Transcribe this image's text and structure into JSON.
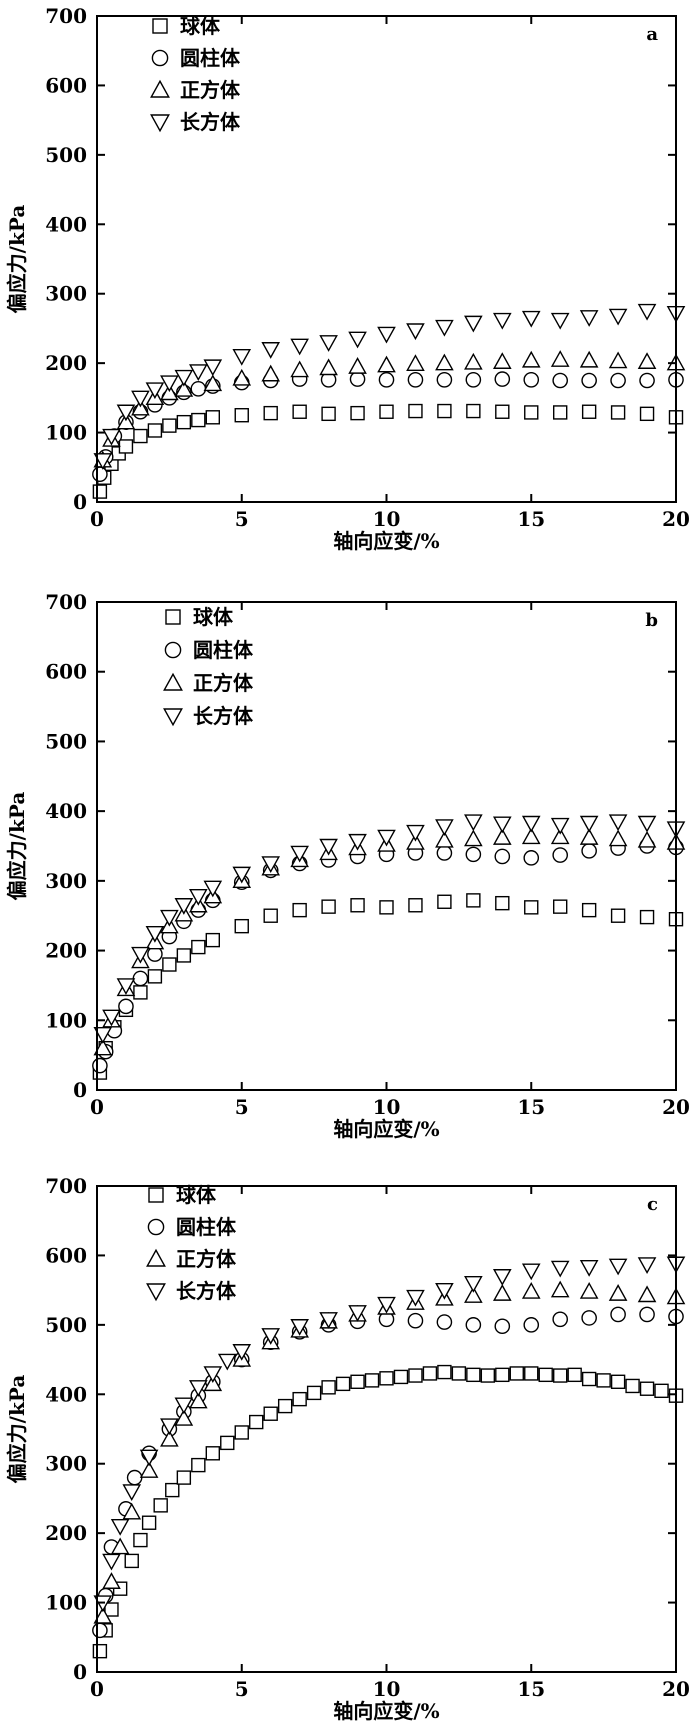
{
  "chart_data": [
    {
      "type": "scatter",
      "panel_label": "a",
      "xlabel": "轴向应变/%",
      "ylabel": "偏应力/kPa",
      "xlim": [
        0,
        20
      ],
      "ylim": [
        0,
        700
      ],
      "xticks": [
        0,
        5,
        10,
        15,
        20
      ],
      "yticks": [
        0,
        100,
        200,
        300,
        400,
        500,
        600,
        700
      ],
      "grid": false,
      "legend_position": "top-left",
      "series": [
        {
          "name": "球体",
          "marker": "square",
          "x": [
            0.1,
            0.25,
            0.5,
            0.75,
            1,
            1.5,
            2,
            2.5,
            3,
            3.5,
            4,
            5,
            6,
            7,
            8,
            9,
            10,
            11,
            12,
            13,
            14,
            15,
            16,
            17,
            18,
            19,
            20
          ],
          "y": [
            15,
            35,
            55,
            70,
            80,
            95,
            103,
            110,
            115,
            118,
            122,
            125,
            128,
            130,
            127,
            128,
            130,
            131,
            131,
            131,
            130,
            129,
            129,
            130,
            129,
            127,
            122
          ]
        },
        {
          "name": "圆柱体",
          "marker": "circle",
          "x": [
            0.1,
            0.3,
            0.6,
            1,
            1.5,
            2,
            2.5,
            3,
            3.5,
            4,
            5,
            6,
            7,
            8,
            9,
            10,
            11,
            12,
            13,
            14,
            15,
            16,
            17,
            18,
            19,
            20
          ],
          "y": [
            40,
            65,
            95,
            115,
            130,
            140,
            150,
            158,
            163,
            167,
            172,
            175,
            177,
            176,
            177,
            176,
            176,
            176,
            176,
            177,
            176,
            175,
            175,
            175,
            175,
            176
          ]
        },
        {
          "name": "正方体",
          "marker": "triangle-up",
          "x": [
            0.2,
            0.5,
            1,
            1.5,
            2,
            2.5,
            3,
            4,
            5,
            6,
            7,
            8,
            9,
            10,
            11,
            12,
            13,
            14,
            15,
            16,
            17,
            18,
            19,
            20
          ],
          "y": [
            60,
            90,
            115,
            135,
            150,
            157,
            162,
            170,
            178,
            184,
            190,
            193,
            195,
            197,
            199,
            200,
            201,
            202,
            204,
            205,
            204,
            203,
            202,
            200
          ]
        },
        {
          "name": "长方体",
          "marker": "triangle-down",
          "x": [
            0.2,
            0.5,
            1,
            1.5,
            2,
            2.5,
            3,
            3.5,
            4,
            5,
            6,
            7,
            8,
            9,
            10,
            11,
            12,
            13,
            14,
            15,
            16,
            17,
            18,
            19,
            20
          ],
          "y": [
            60,
            95,
            130,
            150,
            162,
            172,
            180,
            188,
            195,
            210,
            220,
            225,
            230,
            235,
            242,
            247,
            252,
            258,
            262,
            265,
            262,
            266,
            268,
            275,
            272
          ]
        }
      ]
    },
    {
      "type": "scatter",
      "panel_label": "b",
      "xlabel": "轴向应变/%",
      "ylabel": "偏应力/kPa",
      "xlim": [
        0,
        20
      ],
      "ylim": [
        0,
        700
      ],
      "xticks": [
        0,
        5,
        10,
        15,
        20
      ],
      "yticks": [
        0,
        100,
        200,
        300,
        400,
        500,
        600,
        700
      ],
      "grid": false,
      "legend_position": "top-left",
      "series": [
        {
          "name": "球体",
          "marker": "square",
          "x": [
            0.1,
            0.3,
            0.6,
            1,
            1.5,
            2,
            2.5,
            3,
            3.5,
            4,
            5,
            6,
            7,
            8,
            9,
            10,
            11,
            12,
            13,
            14,
            15,
            16,
            17,
            18,
            19,
            20
          ],
          "y": [
            25,
            60,
            90,
            115,
            140,
            163,
            180,
            193,
            205,
            215,
            235,
            250,
            258,
            263,
            265,
            262,
            265,
            270,
            272,
            268,
            262,
            263,
            258,
            250,
            248,
            245
          ]
        },
        {
          "name": "圆柱体",
          "marker": "circle",
          "x": [
            0.1,
            0.3,
            0.6,
            1,
            1.5,
            2,
            2.5,
            3,
            3.5,
            4,
            5,
            6,
            7,
            8,
            9,
            10,
            11,
            12,
            13,
            14,
            15,
            16,
            17,
            18,
            19,
            20
          ],
          "y": [
            35,
            55,
            85,
            120,
            160,
            195,
            220,
            242,
            258,
            272,
            298,
            315,
            325,
            330,
            335,
            338,
            340,
            340,
            338,
            335,
            333,
            337,
            343,
            347,
            350,
            348
          ]
        },
        {
          "name": "正方体",
          "marker": "triangle-up",
          "x": [
            0.2,
            0.5,
            1,
            1.5,
            2,
            2.5,
            3,
            3.5,
            4,
            5,
            6,
            7,
            8,
            9,
            10,
            11,
            12,
            13,
            14,
            15,
            16,
            17,
            18,
            19,
            20
          ],
          "y": [
            60,
            100,
            145,
            185,
            212,
            235,
            252,
            265,
            278,
            300,
            318,
            330,
            340,
            347,
            352,
            355,
            358,
            360,
            362,
            363,
            363,
            362,
            360,
            358,
            355
          ]
        },
        {
          "name": "长方体",
          "marker": "triangle-down",
          "x": [
            0.2,
            0.5,
            1,
            1.5,
            2,
            2.5,
            3,
            3.5,
            4,
            5,
            6,
            7,
            8,
            9,
            10,
            11,
            12,
            13,
            14,
            15,
            16,
            17,
            18,
            19,
            20
          ],
          "y": [
            80,
            105,
            150,
            195,
            225,
            248,
            265,
            278,
            290,
            310,
            325,
            340,
            350,
            357,
            363,
            370,
            378,
            385,
            382,
            383,
            380,
            383,
            385,
            383,
            375
          ]
        }
      ]
    },
    {
      "type": "scatter",
      "panel_label": "c",
      "xlabel": "轴向应变/%",
      "ylabel": "偏应力/kPa",
      "xlim": [
        0,
        20
      ],
      "ylim": [
        0,
        700
      ],
      "xticks": [
        0,
        5,
        10,
        15,
        20
      ],
      "yticks": [
        0,
        100,
        200,
        300,
        400,
        500,
        600,
        700
      ],
      "grid": false,
      "legend_position": "top-left",
      "series": [
        {
          "name": "球体",
          "marker": "square",
          "x": [
            0.1,
            0.3,
            0.5,
            0.8,
            1.2,
            1.5,
            1.8,
            2.2,
            2.6,
            3,
            3.5,
            4,
            4.5,
            5,
            5.5,
            6,
            6.5,
            7,
            7.5,
            8,
            8.5,
            9,
            9.5,
            10,
            10.5,
            11,
            11.5,
            12,
            12.5,
            13,
            13.5,
            14,
            14.5,
            15,
            15.5,
            16,
            16.5,
            17,
            17.5,
            18,
            18.5,
            19,
            19.5,
            20
          ],
          "y": [
            30,
            60,
            90,
            120,
            160,
            190,
            215,
            240,
            262,
            280,
            298,
            315,
            330,
            345,
            360,
            372,
            383,
            393,
            402,
            410,
            415,
            418,
            420,
            423,
            425,
            427,
            430,
            432,
            430,
            428,
            427,
            428,
            430,
            430,
            428,
            427,
            428,
            422,
            420,
            418,
            412,
            408,
            405,
            398
          ]
        },
        {
          "name": "圆柱体",
          "marker": "circle",
          "x": [
            0.1,
            0.3,
            0.5,
            1,
            1.3,
            1.8,
            2.5,
            3,
            3.5,
            4,
            5,
            6,
            7,
            8,
            9,
            10,
            11,
            12,
            13,
            14,
            15,
            16,
            17,
            18,
            19,
            20
          ],
          "y": [
            60,
            110,
            180,
            235,
            280,
            315,
            350,
            375,
            398,
            418,
            450,
            475,
            490,
            500,
            505,
            508,
            506,
            504,
            500,
            498,
            500,
            508,
            510,
            515,
            515,
            512
          ]
        },
        {
          "name": "正方体",
          "marker": "triangle-up",
          "x": [
            0.2,
            0.5,
            0.8,
            1.2,
            1.8,
            2.5,
            3,
            3.5,
            4,
            5,
            6,
            7,
            8,
            9,
            10,
            11,
            12,
            13,
            14,
            15,
            16,
            17,
            18,
            19,
            20
          ],
          "y": [
            80,
            130,
            180,
            230,
            290,
            335,
            365,
            390,
            415,
            450,
            475,
            492,
            505,
            515,
            525,
            532,
            538,
            542,
            545,
            548,
            550,
            548,
            545,
            543,
            540
          ]
        },
        {
          "name": "长方体",
          "marker": "triangle-down",
          "x": [
            0.2,
            0.5,
            0.8,
            1.2,
            1.8,
            2.5,
            3,
            3.5,
            4,
            4.5,
            5,
            6,
            7,
            8,
            9,
            10,
            11,
            12,
            13,
            14,
            15,
            16,
            17,
            18,
            19,
            20
          ],
          "y": [
            100,
            160,
            210,
            260,
            310,
            355,
            385,
            410,
            430,
            448,
            462,
            485,
            498,
            508,
            518,
            530,
            540,
            550,
            560,
            570,
            578,
            582,
            583,
            585,
            587,
            588
          ]
        }
      ]
    }
  ]
}
